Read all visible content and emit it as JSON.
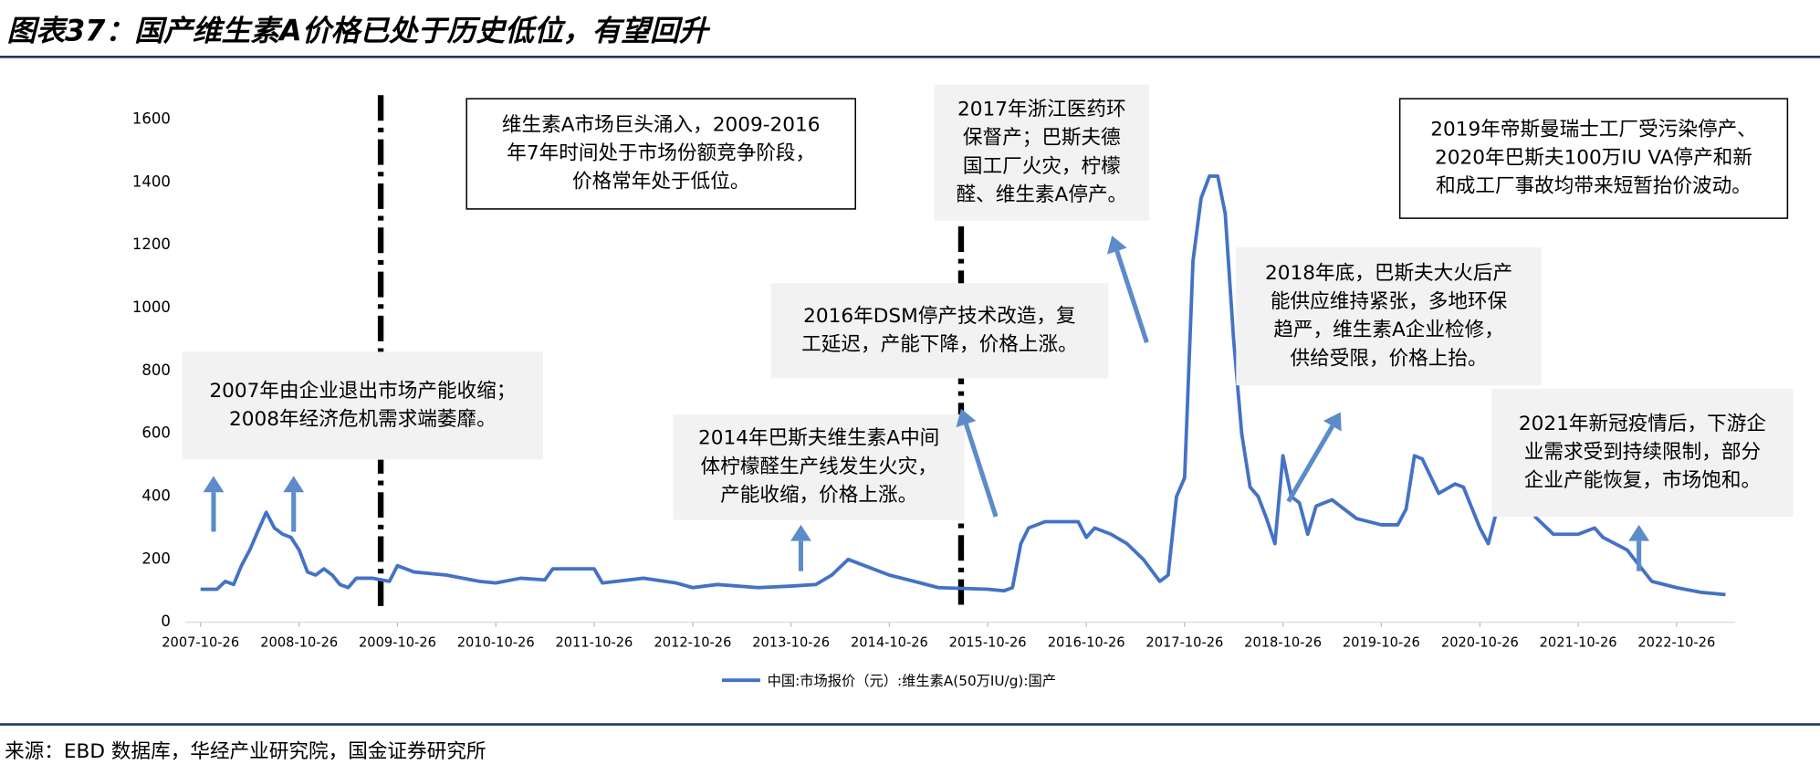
{
  "chart_data": {
    "type": "line",
    "title": "图表37：国产维生素A价格已处于历史低位，有望回升",
    "source": "来源：EBD 数据库，华经产业研究院，国金证券研究所",
    "x": [
      "2007-10-26",
      "2007-12-26",
      "2008-01-26",
      "2008-02-26",
      "2008-03-26",
      "2008-04-26",
      "2008-05-26",
      "2008-06-26",
      "2008-07-26",
      "2008-08-26",
      "2008-09-26",
      "2008-10-26",
      "2008-11-26",
      "2008-12-26",
      "2009-01-26",
      "2009-02-26",
      "2009-03-26",
      "2009-04-26",
      "2009-05-26",
      "2009-07-26",
      "2009-09-26",
      "2009-10-26",
      "2009-12-26",
      "2010-04-26",
      "2010-08-26",
      "2010-10-26",
      "2011-01-26",
      "2011-04-26",
      "2011-05-26",
      "2011-10-26",
      "2011-11-26",
      "2012-04-26",
      "2012-08-26",
      "2012-10-26",
      "2013-01-26",
      "2013-06-26",
      "2013-10-26",
      "2014-01-26",
      "2014-03-26",
      "2014-05-26",
      "2014-07-26",
      "2014-10-26",
      "2015-01-26",
      "2015-04-26",
      "2015-10-26",
      "2015-12-26",
      "2016-01-26",
      "2016-02-26",
      "2016-03-26",
      "2016-05-26",
      "2016-09-26",
      "2016-10-26",
      "2016-11-26",
      "2017-01-26",
      "2017-03-26",
      "2017-05-26",
      "2017-07-26",
      "2017-08-26",
      "2017-09-26",
      "2017-10-26",
      "2017-11-26",
      "2017-12-26",
      "2018-01-26",
      "2018-02-26",
      "2018-03-26",
      "2018-04-26",
      "2018-05-26",
      "2018-06-26",
      "2018-07-26",
      "2018-08-26",
      "2018-09-26",
      "2018-10-26",
      "2018-11-26",
      "2018-12-26",
      "2019-01-26",
      "2019-02-26",
      "2019-04-26",
      "2019-07-26",
      "2019-10-26",
      "2019-12-26",
      "2020-01-26",
      "2020-02-26",
      "2020-03-26",
      "2020-05-26",
      "2020-07-26",
      "2020-08-26",
      "2020-10-26",
      "2020-11-26",
      "2020-12-26",
      "2021-02-26",
      "2021-03-26",
      "2021-05-26",
      "2021-07-26",
      "2021-10-26",
      "2021-12-26",
      "2022-01-26",
      "2022-04-26",
      "2022-07-26",
      "2022-10-26",
      "2023-01-26",
      "2023-04-26"
    ],
    "series": [
      {
        "name": "中国:市场报价（元）:维生素A(50万IU/g):国产",
        "color": "#4472c4",
        "values": [
          105,
          105,
          130,
          120,
          180,
          230,
          290,
          350,
          300,
          280,
          270,
          230,
          160,
          150,
          170,
          150,
          120,
          110,
          140,
          140,
          130,
          180,
          160,
          150,
          130,
          125,
          140,
          135,
          170,
          170,
          125,
          140,
          125,
          110,
          120,
          110,
          115,
          120,
          150,
          200,
          180,
          150,
          130,
          110,
          105,
          100,
          110,
          250,
          300,
          320,
          320,
          270,
          300,
          280,
          250,
          200,
          130,
          150,
          400,
          460,
          1150,
          1350,
          1420,
          1420,
          1300,
          900,
          600,
          430,
          400,
          330,
          250,
          530,
          400,
          380,
          280,
          370,
          390,
          330,
          310,
          310,
          360,
          530,
          520,
          410,
          440,
          430,
          300,
          250,
          350,
          350,
          390,
          330,
          280,
          280,
          300,
          270,
          230,
          130,
          110,
          95,
          88
        ]
      }
    ],
    "xlim": [
      "2007-09-01",
      "2023-06-01"
    ],
    "xticks": [
      "2007-10-26",
      "2008-10-26",
      "2009-10-26",
      "2010-10-26",
      "2011-10-26",
      "2012-10-26",
      "2013-10-26",
      "2014-10-26",
      "2015-10-26",
      "2016-10-26",
      "2017-10-26",
      "2018-10-26",
      "2019-10-26",
      "2020-10-26",
      "2021-10-26",
      "2022-10-26"
    ],
    "ylim": [
      0,
      1600
    ],
    "yticks": [
      0,
      200,
      400,
      600,
      800,
      1000,
      1200,
      1400,
      1600
    ],
    "grid": false,
    "legend": "bottom",
    "annotations": [
      [
        "维生素A市场巨头涌入，2009-2016",
        "年7年时间处于市场份额竞争阶段，",
        "价格常年处于低位。"
      ],
      [
        "2017年浙江医药环",
        "保督产；巴斯夫德",
        "国工厂火灾，柠檬",
        "醛、维生素A停产。"
      ],
      [
        "2019年帝斯曼瑞士工厂受污染停产、",
        "2020年巴斯夫100万IU VA停产和新",
        "和成工厂事故均带来短暂抬价波动。"
      ],
      [
        "2018年底，巴斯夫大火后产",
        "能供应维持紧张，多地环保",
        "趋严，维生素A企业检修，",
        "供给受限，价格上抬。"
      ],
      [
        "2016年DSM停产技术改造，复",
        "工延迟，产能下降，价格上涨。"
      ],
      [
        "2007年由企业退出市场产能收缩；",
        "2008年经济危机需求端萎靡。"
      ],
      [
        "2014年巴斯夫维生素A中间",
        "体柠檬醛生产线发生火灾，",
        "产能收缩，价格上涨。"
      ],
      [
        "2021年新冠疫情后，下游企",
        "业需求受到持续限制，部分",
        "企业产能恢复，市场饱和。"
      ]
    ]
  }
}
